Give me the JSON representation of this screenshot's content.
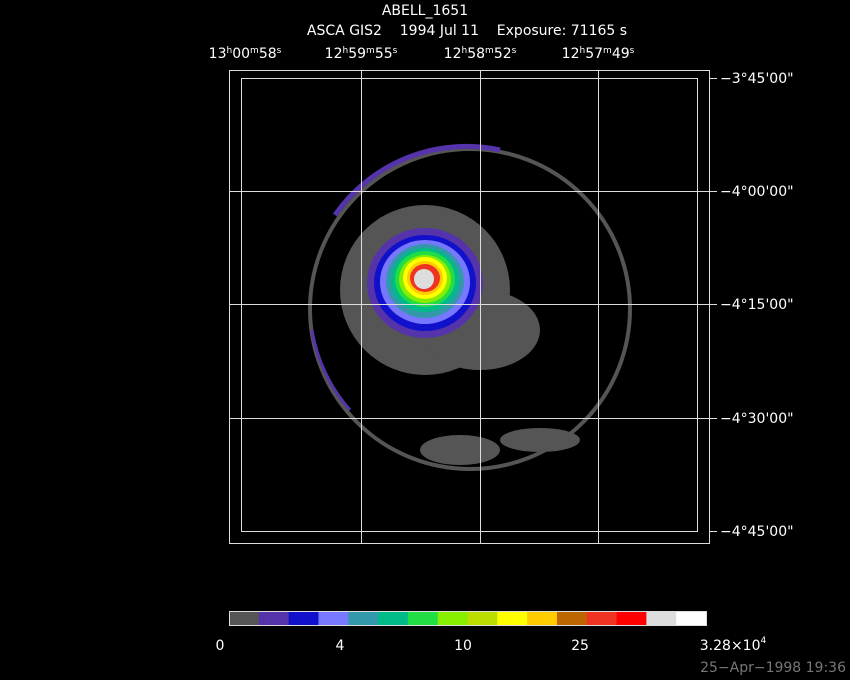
{
  "header": {
    "title": "ABELL_1651",
    "subtitle": "ASCA GIS2    1994 Jul 11    Exposure: 71165 s"
  },
  "ra_labels": [
    [
      "13",
      "h",
      "00",
      "m",
      "58",
      "s"
    ],
    [
      "12",
      "h",
      "59",
      "m",
      "55",
      "s"
    ],
    [
      "12",
      "h",
      "58",
      "m",
      "52",
      "s"
    ],
    [
      "12",
      "h",
      "57",
      "m",
      "49",
      "s"
    ]
  ],
  "dec_labels": [
    "−3°45'00\"",
    "−4°00'00\"",
    "−4°15'00\"",
    "−4°30'00\"",
    "−4°45'00\""
  ],
  "colorbar": {
    "labels": [
      [
        "0"
      ],
      [
        "4"
      ],
      [
        "10"
      ],
      [
        "25"
      ],
      [
        "3.28×10",
        "4"
      ]
    ]
  },
  "footer": {
    "timestamp": "25−Apr−1998 19:36"
  }
}
